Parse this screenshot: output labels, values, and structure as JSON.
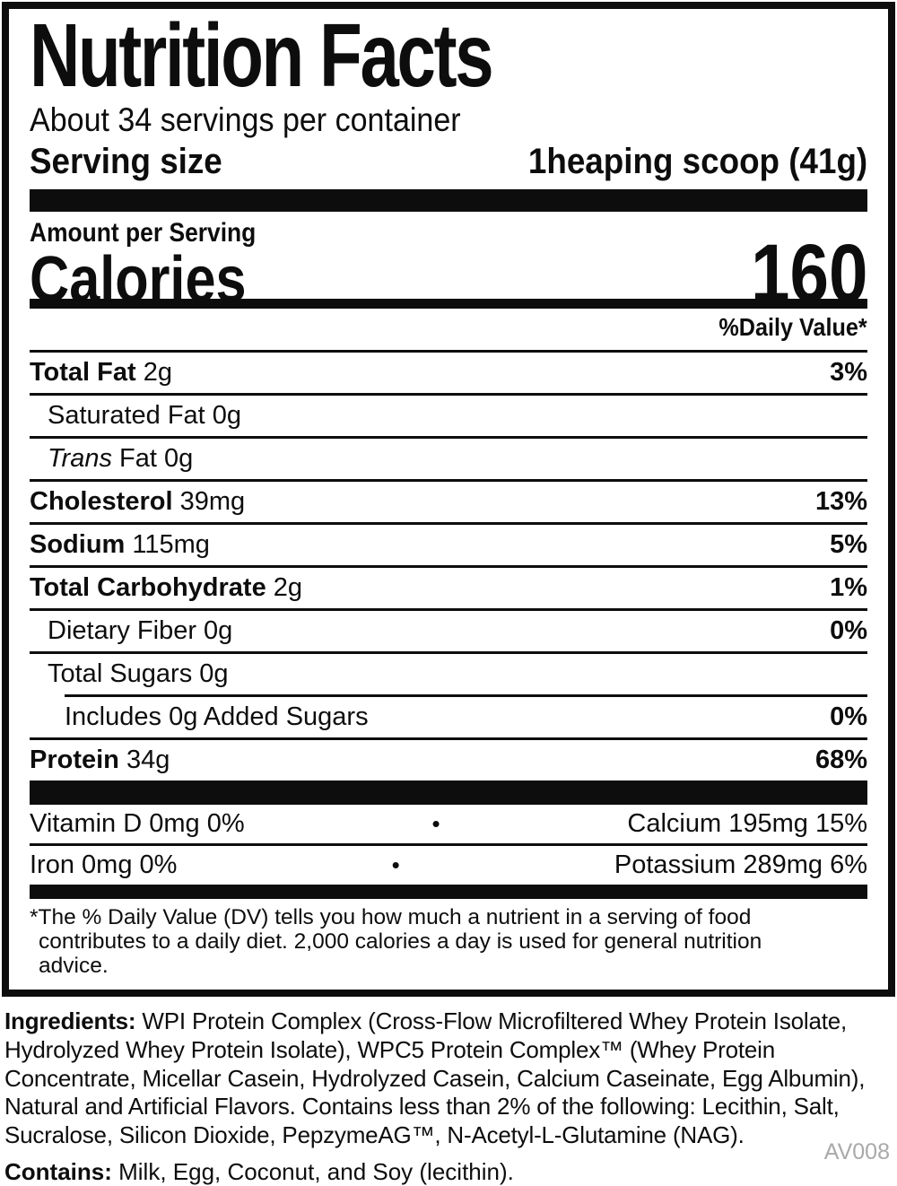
{
  "label": {
    "title": "Nutrition Facts",
    "servings_per_container": "About 34 servings per container",
    "serving_size_label": "Serving size",
    "serving_size_value": "1heaping scoop (41g)",
    "amount_per_serving": "Amount per Serving",
    "calories_label": "Calories",
    "calories_value": "160",
    "daily_value_header": "%Daily Value*",
    "rows": [
      {
        "bold": "Total Fat",
        "regular": " 2g",
        "dv": "3%"
      },
      {
        "regular": "Saturated Fat 0g"
      },
      {
        "italic": "Trans",
        "regular": " Fat 0g"
      },
      {
        "bold": "Cholesterol",
        "regular": " 39mg",
        "dv": "13%"
      },
      {
        "bold": "Sodium",
        "regular": " 115mg",
        "dv": "5%"
      },
      {
        "bold": "Total Carbohydrate",
        "regular": " 2g",
        "dv": "1%"
      },
      {
        "regular": "Dietary Fiber 0g",
        "dv": "0%"
      },
      {
        "regular": "Total Sugars 0g"
      },
      {
        "regular": "Includes 0g Added Sugars",
        "dv": "0%"
      },
      {
        "bold": "Protein",
        "regular": " 34g",
        "dv": "68%"
      }
    ],
    "micronutrients": [
      {
        "left": "Vitamin D 0mg 0%",
        "bullet": "•",
        "right": "Calcium 195mg 15%"
      },
      {
        "left": "Iron 0mg 0%",
        "bullet": "•",
        "right": "Potassium 289mg 6%"
      }
    ],
    "footnote": "*The % Daily Value (DV) tells you how much a nutrient in a serving of food contributes to a daily diet. 2,000 calories a day is used for general nutrition advice."
  },
  "ingredients": {
    "label": "Ingredients:",
    "text": " WPI Protein Complex (Cross-Flow Microfiltered Whey Protein Isolate, Hydrolyzed Whey Protein Isolate), WPC5 Protein Complex™ (Whey Protein Concentrate, Micellar Casein, Hydrolyzed Casein, Calcium Caseinate, Egg Albumin), Natural and Artificial Flavors. Contains less than 2% of the following: Lecithin, Salt, Sucralose, Silicon Dioxide, PepzymeAG™, N-Acetyl-L-Glutamine (NAG)."
  },
  "contains": {
    "label": "Contains:",
    "text": " Milk, Egg, Coconut, and Soy (lecithin)."
  },
  "footer_code": "AV008",
  "colors": {
    "text": "#0d0d0d",
    "muted": "#a9a9a9",
    "background": "#ffffff"
  }
}
